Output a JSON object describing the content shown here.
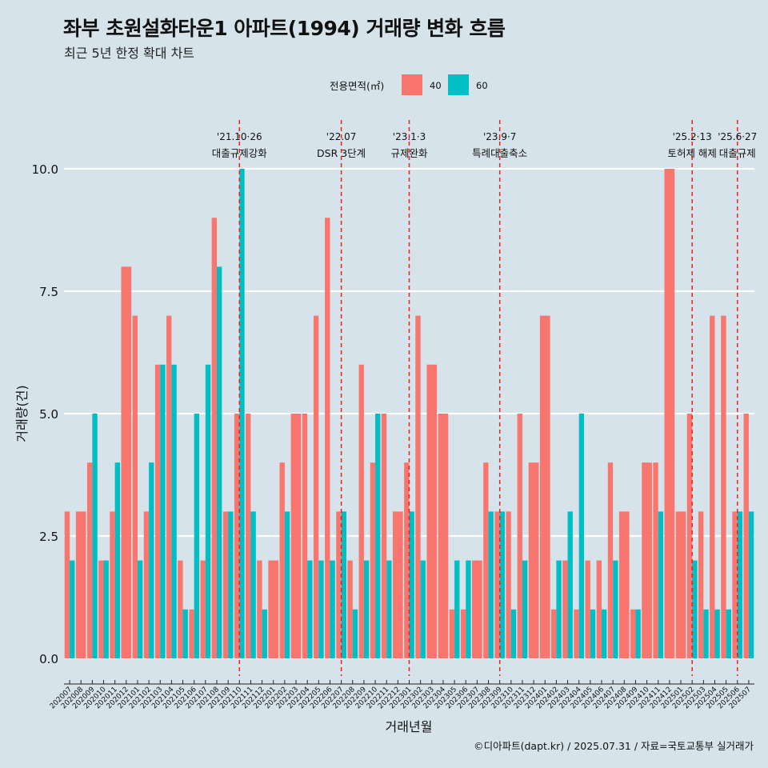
{
  "chart_data": {
    "type": "bar",
    "title": "좌부 초원설화타운1 아파트(1994) 거래량 변화 흐름",
    "subtitle": "최근 5년 한정 확대 차트",
    "xlabel": "거래년월",
    "ylabel": "거래량(건)",
    "ylim": [
      0,
      10
    ],
    "yticks": [
      0,
      2.5,
      5,
      7.5,
      10
    ],
    "ytick_labels": [
      "0.0",
      "2.5",
      "5.0",
      "7.5",
      "10.0"
    ],
    "legend_title": "전용면적(㎡)",
    "legend_position": "top",
    "categories": [
      "202007",
      "202008",
      "202009",
      "202010",
      "202011",
      "202012",
      "202101",
      "202102",
      "202103",
      "202104",
      "202105",
      "202106",
      "202107",
      "202108",
      "202109",
      "202110",
      "202111",
      "202112",
      "202201",
      "202202",
      "202203",
      "202204",
      "202205",
      "202206",
      "202207",
      "202208",
      "202209",
      "202210",
      "202211",
      "202212",
      "202301",
      "202302",
      "202303",
      "202304",
      "202305",
      "202306",
      "202307",
      "202308",
      "202309",
      "202310",
      "202311",
      "202312",
      "202401",
      "202402",
      "202403",
      "202404",
      "202405",
      "202406",
      "202407",
      "202408",
      "202409",
      "202410",
      "202411",
      "202412",
      "202501",
      "202502",
      "202503",
      "202504",
      "202505",
      "202506",
      "202507"
    ],
    "x_tick_labels": [
      "202007",
      "202008",
      "202009",
      "202010",
      "202011",
      "202012",
      "202101",
      "202102",
      "202103",
      "202104",
      "202105",
      "202106",
      "202107",
      "202108",
      "202109",
      "202110",
      "202111",
      "202112",
      "202201",
      "202202",
      "202203",
      "202204",
      "202205",
      "202206",
      "202207",
      "202208",
      "202209",
      "202210",
      "202211",
      "202212",
      "202301",
      "202302",
      "202303",
      "202304",
      "202305",
      "202306",
      "202307",
      "202308",
      "202309",
      "202310",
      "202311",
      "202312",
      "202401",
      "202402",
      "202403",
      "202404",
      "202405",
      "202406",
      "202407",
      "202408",
      "202409",
      "202410",
      "202411",
      "202412",
      "202501",
      "202502",
      "202503",
      "202504",
      "202505",
      "202506",
      "202507"
    ],
    "series": [
      {
        "name": "40",
        "color": "#f8766d",
        "values": [
          3,
          3,
          4,
          2,
          3,
          8,
          7,
          3,
          6,
          7,
          2,
          1,
          2,
          9,
          3,
          5,
          5,
          2,
          2,
          4,
          5,
          5,
          7,
          9,
          3,
          2,
          6,
          4,
          5,
          3,
          4,
          7,
          6,
          5,
          1,
          1,
          2,
          4,
          3,
          3,
          5,
          4,
          7,
          1,
          2,
          1,
          2,
          2,
          4,
          3,
          1,
          4,
          4,
          10,
          3,
          5,
          3,
          7,
          7,
          3,
          5
        ]
      },
      {
        "name": "60",
        "color": "#00bfc4",
        "values": [
          2,
          0,
          5,
          2,
          4,
          0,
          2,
          4,
          6,
          6,
          1,
          5,
          6,
          8,
          3,
          10,
          3,
          1,
          0,
          3,
          0,
          2,
          2,
          2,
          3,
          1,
          2,
          5,
          2,
          0,
          3,
          2,
          0,
          0,
          2,
          2,
          0,
          3,
          3,
          1,
          2,
          0,
          0,
          2,
          3,
          5,
          1,
          1,
          2,
          0,
          1,
          0,
          3,
          0,
          0,
          2,
          1,
          1,
          1,
          3,
          3
        ]
      }
    ],
    "annotations": [
      {
        "x": "202110",
        "date": "'21.10·26",
        "label": "대출규제강화"
      },
      {
        "x": "202207",
        "date": "'22.07",
        "label": "DSR 3단계"
      },
      {
        "x": "202301",
        "date": "'23.1·3",
        "label": "규제완화"
      },
      {
        "x": "202309",
        "date": "'23.9·7",
        "label": "특례대출축소"
      },
      {
        "x": "202502",
        "date": "'25.2·13",
        "label": "토허제 해제"
      },
      {
        "x": "202506",
        "date": "'25.6·27",
        "label": "대출규제"
      }
    ],
    "annotation_line_color": "#e8231d"
  },
  "caption": "©디아파트(dapt.kr) / 2025.07.31 / 자료=국토교통부 실거래가"
}
